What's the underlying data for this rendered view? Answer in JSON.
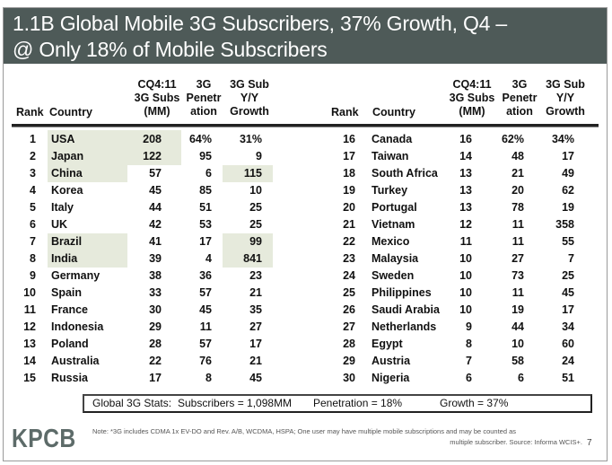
{
  "title": {
    "line1": "1.1B Global Mobile 3G Subscribers, 37% Growth, Q4 –",
    "line2": "@ Only 18% of Mobile Subscribers"
  },
  "columns": {
    "rank": "Rank",
    "country": "Country",
    "subs": [
      "CQ4:11",
      "3G Subs",
      "(MM)"
    ],
    "penetration": [
      "3G",
      "Penetr",
      "ation"
    ],
    "growth": [
      "3G Sub",
      "Y/Y",
      "Growth"
    ]
  },
  "rows": [
    {
      "rank": "1",
      "country": "USA",
      "subs": "208",
      "pen": "64%",
      "growth": "31%"
    },
    {
      "rank": "2",
      "country": "Japan",
      "subs": "122",
      "pen": "95",
      "growth": "9"
    },
    {
      "rank": "3",
      "country": "China",
      "subs": "57",
      "pen": "6",
      "growth": "115"
    },
    {
      "rank": "4",
      "country": "Korea",
      "subs": "45",
      "pen": "85",
      "growth": "10"
    },
    {
      "rank": "5",
      "country": "Italy",
      "subs": "44",
      "pen": "51",
      "growth": "25"
    },
    {
      "rank": "6",
      "country": "UK",
      "subs": "42",
      "pen": "53",
      "growth": "25"
    },
    {
      "rank": "7",
      "country": "Brazil",
      "subs": "41",
      "pen": "17",
      "growth": "99"
    },
    {
      "rank": "8",
      "country": "India",
      "subs": "39",
      "pen": "4",
      "growth": "841"
    },
    {
      "rank": "9",
      "country": "Germany",
      "subs": "38",
      "pen": "36",
      "growth": "23"
    },
    {
      "rank": "10",
      "country": "Spain",
      "subs": "33",
      "pen": "57",
      "growth": "21"
    },
    {
      "rank": "11",
      "country": "France",
      "subs": "30",
      "pen": "45",
      "growth": "35"
    },
    {
      "rank": "12",
      "country": "Indonesia",
      "subs": "29",
      "pen": "11",
      "growth": "27"
    },
    {
      "rank": "13",
      "country": "Poland",
      "subs": "28",
      "pen": "57",
      "growth": "17"
    },
    {
      "rank": "14",
      "country": "Australia",
      "subs": "22",
      "pen": "76",
      "growth": "21"
    },
    {
      "rank": "15",
      "country": "Russia",
      "subs": "17",
      "pen": "8",
      "growth": "45"
    },
    {
      "rank": "16",
      "country": "Canada",
      "subs": "16",
      "pen": "62%",
      "growth": "34%"
    },
    {
      "rank": "17",
      "country": "Taiwan",
      "subs": "14",
      "pen": "48",
      "growth": "17"
    },
    {
      "rank": "18",
      "country": "South Africa",
      "subs": "13",
      "pen": "21",
      "growth": "49"
    },
    {
      "rank": "19",
      "country": "Turkey",
      "subs": "13",
      "pen": "20",
      "growth": "62"
    },
    {
      "rank": "20",
      "country": "Portugal",
      "subs": "13",
      "pen": "78",
      "growth": "19"
    },
    {
      "rank": "21",
      "country": "Vietnam",
      "subs": "12",
      "pen": "11",
      "growth": "358"
    },
    {
      "rank": "22",
      "country": "Mexico",
      "subs": "11",
      "pen": "11",
      "growth": "55"
    },
    {
      "rank": "23",
      "country": "Malaysia",
      "subs": "10",
      "pen": "27",
      "growth": "7"
    },
    {
      "rank": "24",
      "country": "Sweden",
      "subs": "10",
      "pen": "73",
      "growth": "25"
    },
    {
      "rank": "25",
      "country": "Philippines",
      "subs": "10",
      "pen": "11",
      "growth": "45"
    },
    {
      "rank": "26",
      "country": "Saudi Arabia",
      "subs": "10",
      "pen": "19",
      "growth": "17"
    },
    {
      "rank": "27",
      "country": "Netherlands",
      "subs": "9",
      "pen": "44",
      "growth": "34"
    },
    {
      "rank": "28",
      "country": "Egypt",
      "subs": "8",
      "pen": "10",
      "growth": "60"
    },
    {
      "rank": "29",
      "country": "Austria",
      "subs": "7",
      "pen": "58",
      "growth": "24"
    },
    {
      "rank": "30",
      "country": "Nigeria",
      "subs": "6",
      "pen": "6",
      "growth": "51"
    }
  ],
  "highlight_color": "#e6eadc",
  "stats": {
    "label": "Global 3G Stats:",
    "subscribers": "Subscribers = 1,098MM",
    "penetration": "Penetration = 18%",
    "growth": "Growth = 37%"
  },
  "footer": {
    "logo": "KPCB",
    "note_line1": "Note: *3G includes CDMA 1x EV-DO and Rev. A/B, WCDMA, HSPA; One user may have multiple mobile subscriptions and may be counted as",
    "note_line2": "multiple subscriber.  Source: Informa WCIS+.",
    "page_number": "7"
  }
}
